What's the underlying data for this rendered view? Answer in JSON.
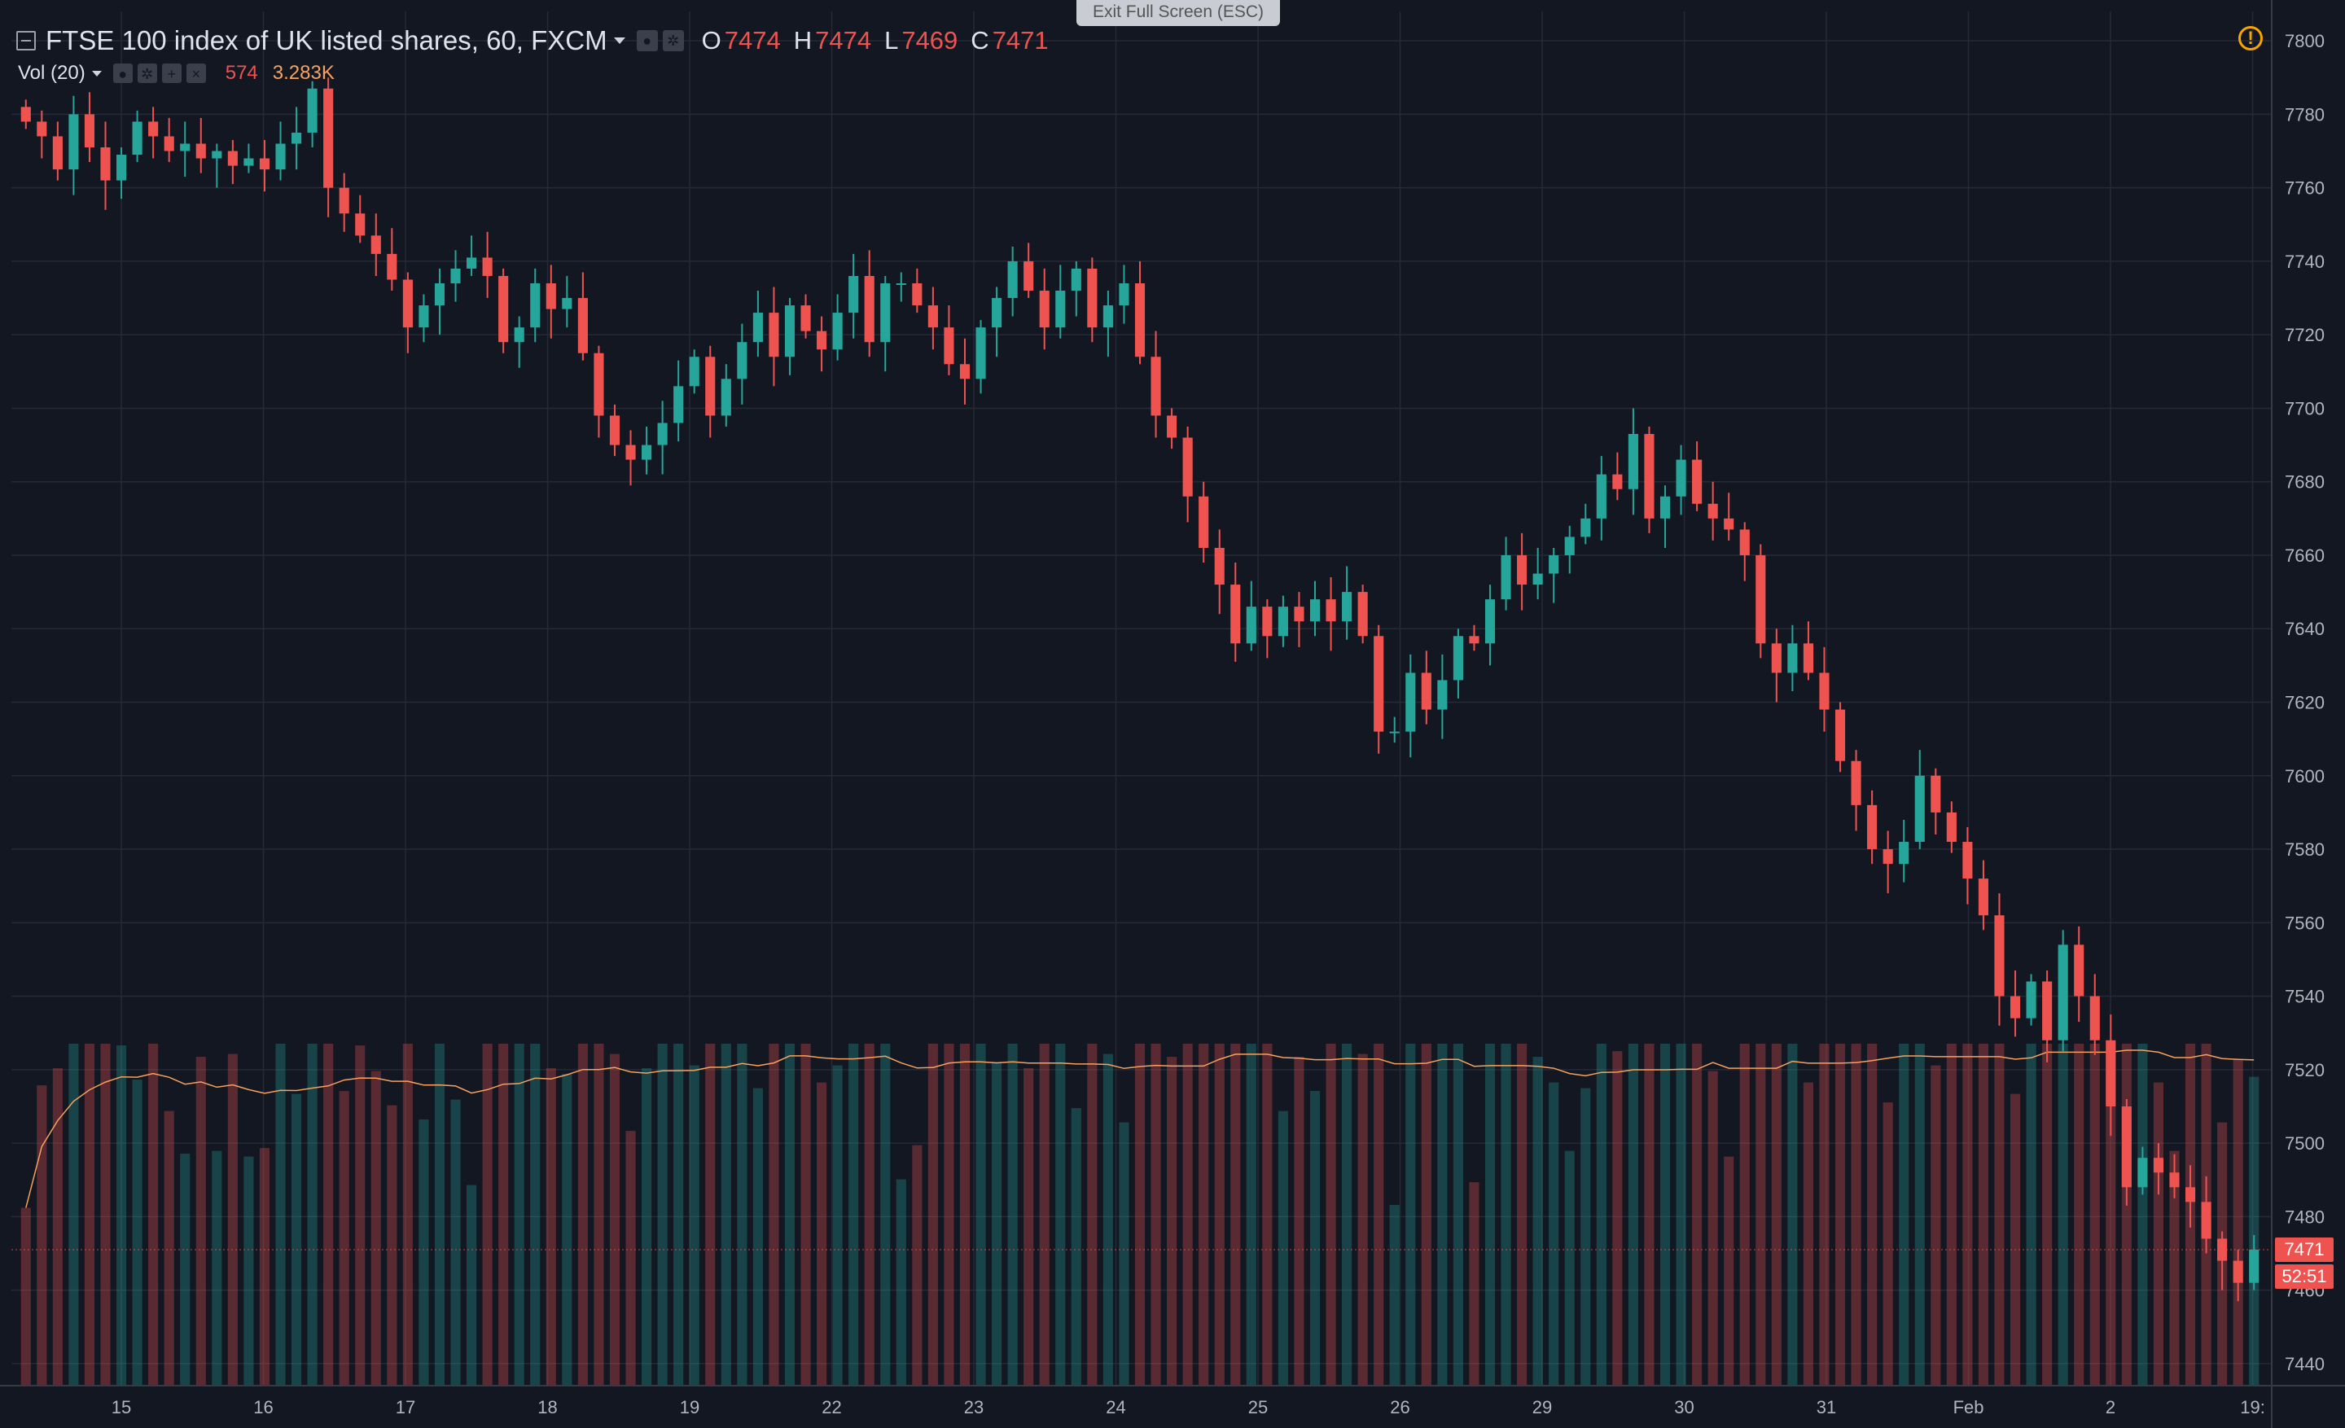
{
  "legend": {
    "title": "FTSE 100 index of UK listed shares, 60, FXCM",
    "ohlc": [
      {
        "label": "O",
        "value": "7474"
      },
      {
        "label": "H",
        "value": "7474"
      },
      {
        "label": "L",
        "value": "7469"
      },
      {
        "label": "C",
        "value": "7471"
      }
    ],
    "vol_label": "Vol (20)",
    "vol_value": "574",
    "vol_ma": "3.283K"
  },
  "exit_fullscreen": "Exit Full Screen (ESC)",
  "price_tags": {
    "last_price": "7471",
    "countdown": "52:51"
  },
  "icons": [
    "collapse-icon",
    "dropdown-caret-icon",
    "eye-icon",
    "gear-icon",
    "plus-icon",
    "close-icon",
    "alert-icon"
  ],
  "colors": {
    "background": "#131722",
    "up": "#26a69a",
    "down": "#ef5350",
    "volume_ma": "#f7a25c",
    "alert": "#f7a600"
  },
  "chart_data": {
    "type": "candlestick",
    "title": "FTSE 100 index of UK listed shares, 60, FXCM",
    "interval": "60",
    "grid": true,
    "price_range": [
      7434,
      7808
    ],
    "price_ticks": [
      7440,
      7460,
      7480,
      7500,
      7520,
      7540,
      7560,
      7580,
      7600,
      7620,
      7640,
      7660,
      7680,
      7700,
      7720,
      7740,
      7760,
      7780,
      7800
    ],
    "x_ticks": [
      "15",
      "16",
      "17",
      "18",
      "19",
      "22",
      "23",
      "24",
      "25",
      "26",
      "29",
      "30",
      "31",
      "Feb",
      "2",
      "19:"
    ],
    "close_series": [
      7778,
      7774,
      7765,
      7780,
      7771,
      7762,
      7769,
      7778,
      7774,
      7770,
      7772,
      7768,
      7770,
      7766,
      7768,
      7765,
      7772,
      7775,
      7787,
      7760,
      7753,
      7747,
      7742,
      7735,
      7722,
      7728,
      7734,
      7738,
      7741,
      7736,
      7718,
      7722,
      7734,
      7727,
      7730,
      7715,
      7698,
      7690,
      7686,
      7690,
      7696,
      7706,
      7714,
      7698,
      7708,
      7718,
      7726,
      7714,
      7728,
      7721,
      7716,
      7726,
      7736,
      7718,
      7734,
      7734,
      7728,
      7722,
      7712,
      7708,
      7722,
      7730,
      7740,
      7732,
      7722,
      7732,
      7738,
      7722,
      7728,
      7734,
      7714,
      7698,
      7692,
      7676,
      7662,
      7652,
      7636,
      7646,
      7638,
      7646,
      7642,
      7648,
      7642,
      7650,
      7638,
      7612,
      7612,
      7628,
      7618,
      7626,
      7638,
      7636,
      7648,
      7660,
      7652,
      7655,
      7660,
      7665,
      7670,
      7682,
      7678,
      7693,
      7670,
      7676,
      7686,
      7674,
      7670,
      7667,
      7660,
      7636,
      7628,
      7636,
      7628,
      7618,
      7604,
      7592,
      7580,
      7576,
      7582,
      7600,
      7590,
      7582,
      7572,
      7562,
      7540,
      7534,
      7544,
      7528,
      7554,
      7540,
      7528,
      7510,
      7488,
      7496,
      7492,
      7488,
      7484,
      7474,
      7468,
      7462,
      7471
    ],
    "volume_ma_window": 20,
    "last_price": 7471,
    "last_volume": 574
  }
}
